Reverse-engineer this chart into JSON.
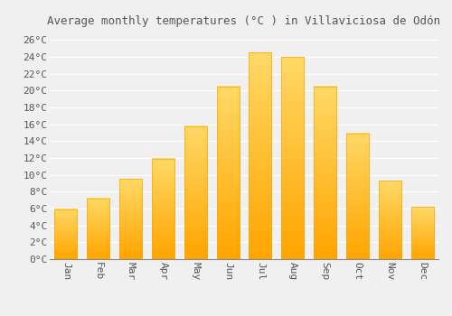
{
  "title": "Average monthly temperatures (°C ) in Villaviciosa de Odón",
  "months": [
    "Jan",
    "Feb",
    "Mar",
    "Apr",
    "May",
    "Jun",
    "Jul",
    "Aug",
    "Sep",
    "Oct",
    "Nov",
    "Dec"
  ],
  "values": [
    5.9,
    7.2,
    9.5,
    11.9,
    15.8,
    20.5,
    24.5,
    24.0,
    20.5,
    14.9,
    9.3,
    6.2
  ],
  "bar_color_bottom": "#FFA500",
  "bar_color_top": "#FFD966",
  "background_color": "#F0F0F0",
  "grid_color": "#FFFFFF",
  "text_color": "#555555",
  "ylim": [
    0,
    27
  ],
  "yticks": [
    0,
    2,
    4,
    6,
    8,
    10,
    12,
    14,
    16,
    18,
    20,
    22,
    24,
    26
  ],
  "title_fontsize": 9,
  "tick_fontsize": 8,
  "font_family": "monospace"
}
